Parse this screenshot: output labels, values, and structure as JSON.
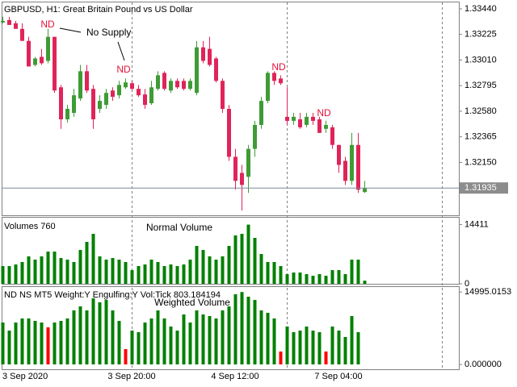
{
  "chart_data": [
    {
      "type": "candlestick",
      "title": "GBPUSD, H1:  Great Britain Pound vs US Dollar",
      "categories": [
        "3 Sep 2020",
        null,
        null,
        null,
        null,
        null,
        null,
        null,
        null,
        null,
        null,
        null,
        null,
        null,
        null,
        null,
        null,
        null,
        null,
        null,
        "3 Sep 20:00",
        null,
        null,
        null,
        null,
        null,
        null,
        null,
        null,
        null,
        null,
        null,
        null,
        null,
        null,
        null,
        "4 Sep 12:00",
        null,
        null,
        null,
        null,
        null,
        null,
        null,
        null,
        null,
        null,
        null,
        null,
        null,
        null,
        null,
        "7 Sep 04:00",
        null,
        null,
        null,
        null
      ],
      "open": [
        1.33326,
        1.33346,
        1.33319,
        1.33272,
        1.33171,
        1.32969,
        1.33037,
        1.33003,
        1.33205,
        1.32781,
        1.32512,
        1.32566,
        1.32687,
        1.32916,
        1.32768,
        1.326,
        1.32633,
        1.32754,
        1.32714,
        1.32781,
        1.32815,
        1.32768,
        1.32721,
        1.32647,
        1.32768,
        1.32902,
        1.32754,
        1.32835,
        1.32835,
        1.32768,
        1.32734,
        1.33117,
        1.33104,
        1.33023,
        1.32835,
        1.326,
        1.32197,
        1.32062,
        1.32029,
        1.32264,
        1.32465,
        1.32667,
        1.32902,
        1.32855,
        1.32533,
        1.32499,
        1.32512,
        1.32465,
        1.32533,
        1.32512,
        1.32432,
        1.32445,
        1.32297,
        1.32163,
        1.31995,
        1.32297,
        1.31901
      ],
      "high": [
        1.33373,
        1.33373,
        1.33339,
        1.33319,
        1.33205,
        1.33037,
        1.33104,
        1.33272,
        1.33205,
        1.32801,
        1.32633,
        1.32768,
        1.32969,
        1.32969,
        1.32801,
        1.32714,
        1.32768,
        1.32781,
        1.32835,
        1.32855,
        1.32835,
        1.32801,
        1.32768,
        1.32835,
        1.32916,
        1.32916,
        1.32855,
        1.32855,
        1.32855,
        1.32855,
        1.33171,
        1.33171,
        1.33205,
        1.33037,
        1.32855,
        1.32633,
        1.32264,
        1.32129,
        1.32297,
        1.32499,
        1.32701,
        1.32916,
        1.32916,
        1.32882,
        1.32781,
        1.32566,
        1.32566,
        1.32566,
        1.32566,
        1.32533,
        1.32499,
        1.32465,
        1.32297,
        1.32197,
        1.32398,
        1.32398,
        1.31995
      ],
      "low": [
        1.33319,
        1.33305,
        1.33272,
        1.33171,
        1.32956,
        1.32956,
        1.32969,
        1.32983,
        1.32734,
        1.32432,
        1.32486,
        1.32533,
        1.32667,
        1.32734,
        1.32432,
        1.32566,
        1.326,
        1.32667,
        1.32687,
        1.32768,
        1.32754,
        1.32701,
        1.326,
        1.32633,
        1.32754,
        1.32754,
        1.32734,
        1.32768,
        1.32754,
        1.32754,
        1.32714,
        1.32983,
        1.32956,
        1.32822,
        1.32566,
        1.32163,
        1.31921,
        1.31746,
        1.31894,
        1.32197,
        1.32432,
        1.32647,
        1.32801,
        1.32801,
        1.32465,
        1.32465,
        1.32432,
        1.32445,
        1.32465,
        1.32398,
        1.32398,
        1.32264,
        1.32062,
        1.31961,
        1.31961,
        1.31894,
        1.31894
      ],
      "close": [
        1.33339,
        1.33305,
        1.33272,
        1.33171,
        1.32956,
        1.33023,
        1.32983,
        1.33205,
        1.32754,
        1.32512,
        1.326,
        1.32714,
        1.32916,
        1.32754,
        1.32512,
        1.32667,
        1.32734,
        1.32701,
        1.32801,
        1.32822,
        1.32768,
        1.32714,
        1.32633,
        1.32781,
        1.32882,
        1.32768,
        1.32835,
        1.32781,
        1.32768,
        1.32835,
        1.33117,
        1.33003,
        1.32969,
        1.32835,
        1.326,
        1.32197,
        1.31995,
        1.31961,
        1.32264,
        1.32465,
        1.32667,
        1.32902,
        1.32835,
        1.32815,
        1.32499,
        1.32533,
        1.32445,
        1.32533,
        1.32499,
        1.32398,
        1.32465,
        1.32297,
        1.32129,
        1.31995,
        1.32297,
        1.31921,
        1.31935
      ],
      "up_color": "#3f9b35",
      "down_color": "#e0245a",
      "ylim": [
        1.31706,
        1.33494
      ],
      "yticks": [
        {
          "value": 1.3344,
          "label": "1.33440"
        },
        1.33225,
        {
          "value": 1.3301,
          "label": "1.33010"
        },
        1.32795,
        {
          "value": 1.3258,
          "label": "1.32580"
        },
        1.32365,
        {
          "value": 1.3215,
          "label": "1.32150"
        }
      ],
      "current_price": 1.31935,
      "annotations": [
        "ND",
        "ND",
        "ND",
        "ND",
        "No Supply"
      ],
      "annotation_color": "#e8103a"
    },
    {
      "type": "bar",
      "title": "Volumes 760",
      "annotation": "Normal Volume",
      "color": "#008000",
      "values": [
        4320,
        4320,
        4710,
        5300,
        6680,
        5890,
        6680,
        7850,
        7850,
        6280,
        5890,
        5300,
        8250,
        10210,
        12170,
        6680,
        5890,
        6280,
        5890,
        5300,
        3340,
        4320,
        4710,
        5890,
        5300,
        4320,
        4710,
        4320,
        4710,
        5890,
        9230,
        8250,
        6680,
        5890,
        6680,
        9230,
        11780,
        12170,
        14411,
        11190,
        7260,
        5300,
        5300,
        4320,
        2360,
        2750,
        2750,
        2360,
        1960,
        2360,
        1960,
        3340,
        3340,
        2360,
        5890,
        5890,
        760
      ],
      "ylim": [
        0,
        16100
      ],
      "yticks": [
        14411,
        0
      ]
    },
    {
      "type": "bar",
      "title": "ND NS MT5 Weight:Y Engulfing:Y Vol:Tick 803.184194",
      "annotation": "Weighted Volume",
      "values": [
        8680,
        7010,
        8680,
        9520,
        9520,
        9020,
        8680,
        7680,
        8680,
        9020,
        9520,
        11190,
        12020,
        11190,
        13690,
        12860,
        13360,
        11190,
        9020,
        3170,
        7010,
        6680,
        8680,
        9520,
        11190,
        9520,
        7850,
        7010,
        10350,
        8680,
        11190,
        10350,
        10020,
        9520,
        11190,
        12020,
        14530,
        14995.0153,
        14030,
        13360,
        11190,
        10690,
        9520,
        2670,
        7850,
        6680,
        7010,
        7850,
        7010,
        6680,
        2670,
        7850,
        7010,
        5680,
        10020,
        6680,
        0
      ],
      "colors": [
        "#008000",
        "#008000",
        "#008000",
        "#008000",
        "#008000",
        "#008000",
        "#008000",
        "#ff0000",
        "#008000",
        "#008000",
        "#008000",
        "#008000",
        "#008000",
        "#008000",
        "#008000",
        "#008000",
        "#008000",
        "#008000",
        "#008000",
        "#ff0000",
        "#008000",
        "#008000",
        "#008000",
        "#008000",
        "#008000",
        "#008000",
        "#008000",
        "#008000",
        "#008000",
        "#008000",
        "#008000",
        "#008000",
        "#008000",
        "#008000",
        "#008000",
        "#008000",
        "#008000",
        "#008000",
        "#008000",
        "#008000",
        "#008000",
        "#008000",
        "#008000",
        "#ff0000",
        "#008000",
        "#008000",
        "#008000",
        "#008000",
        "#008000",
        "#008000",
        "#ff0000",
        "#008000",
        "#008000",
        "#008000",
        "#008000",
        "#008000",
        "#008000"
      ],
      "ylim": [
        0,
        16030
      ],
      "yticks": [
        14995.0153,
        {
          "value": 0,
          "label": "0.000000"
        }
      ]
    }
  ]
}
